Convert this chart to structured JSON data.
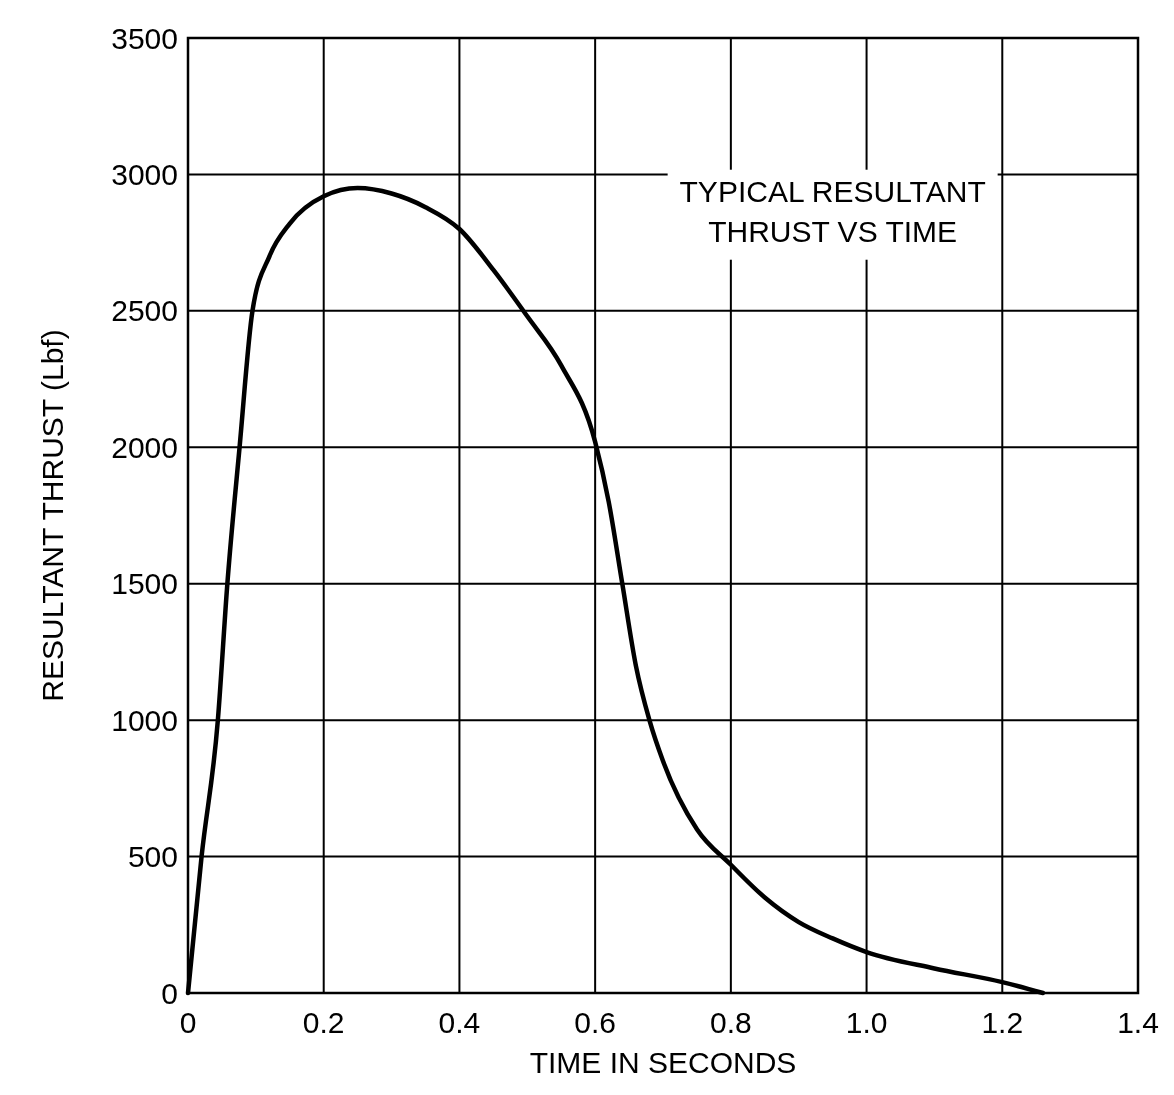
{
  "chart_data": {
    "type": "line",
    "title": "TYPICAL RESULTANT\nTHRUST VS TIME",
    "xlabel": "TIME IN SECONDS",
    "ylabel": "RESULTANT THRUST (Lbf)",
    "xlim": [
      0,
      1.4
    ],
    "ylim": [
      0,
      3500
    ],
    "xticks": [
      0,
      0.2,
      0.4,
      0.6,
      0.8,
      {
        "value": 1,
        "label": "1.0"
      },
      1.2,
      1.4
    ],
    "yticks": [
      0,
      500,
      1000,
      1500,
      2000,
      2500,
      3000,
      3500
    ],
    "grid": true,
    "marker": "none",
    "line_style": "solid",
    "series": [
      {
        "color": "#000000",
        "x": [
          0,
          0.02,
          0.044,
          0.058,
          0.076,
          0.095,
          0.12,
          0.15,
          0.2,
          0.25,
          0.3,
          0.35,
          0.4,
          0.45,
          0.5,
          0.55,
          0.6,
          0.62,
          0.64,
          0.66,
          0.68,
          0.7,
          0.75,
          0.8,
          0.85,
          0.9,
          0.95,
          1.0,
          1.1,
          1.2,
          1.26
        ],
        "values": [
          0,
          500,
          1000,
          1500,
          2000,
          2500,
          2700,
          2820,
          2920,
          2950,
          2930,
          2880,
          2800,
          2650,
          2480,
          2300,
          2020,
          1800,
          1500,
          1200,
          1000,
          850,
          600,
          470,
          350,
          260,
          200,
          150,
          90,
          40,
          0
        ]
      }
    ]
  }
}
